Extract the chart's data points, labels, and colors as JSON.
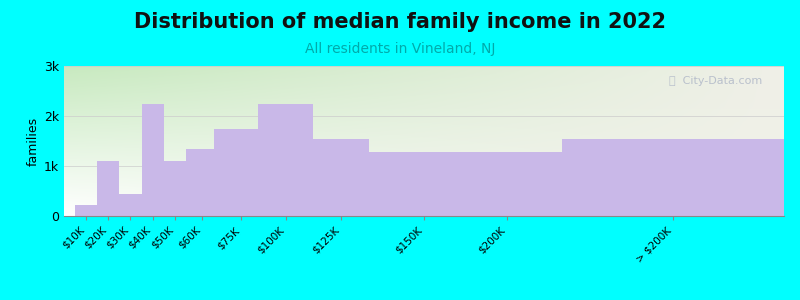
{
  "title": "Distribution of median family income in 2022",
  "subtitle": "All residents in Vineland, NJ",
  "categories": [
    "$10K",
    "$20K",
    "$30K",
    "$40K",
    "$50K",
    "$60K",
    "$75K",
    "$100K",
    "$125K",
    "$150K",
    "$200K",
    "> $200K"
  ],
  "values": [
    220,
    1100,
    450,
    2250,
    1100,
    1350,
    1750,
    2250,
    1550,
    1280,
    1280,
    1550
  ],
  "bar_color": "#c9b8e8",
  "background_color": "#00ffff",
  "plot_bg_color_topleft": "#c8eac0",
  "plot_bg_color_right": "#f0f0e8",
  "ylabel": "families",
  "ylim": [
    0,
    3000
  ],
  "yticks": [
    0,
    1000,
    2000,
    3000
  ],
  "ytick_labels": [
    "0",
    "1k",
    "2k",
    "3k"
  ],
  "title_fontsize": 15,
  "subtitle_fontsize": 10,
  "subtitle_color": "#00aaaa",
  "watermark": "ⓘ  City-Data.com",
  "watermark_color": "#b0b8c8"
}
